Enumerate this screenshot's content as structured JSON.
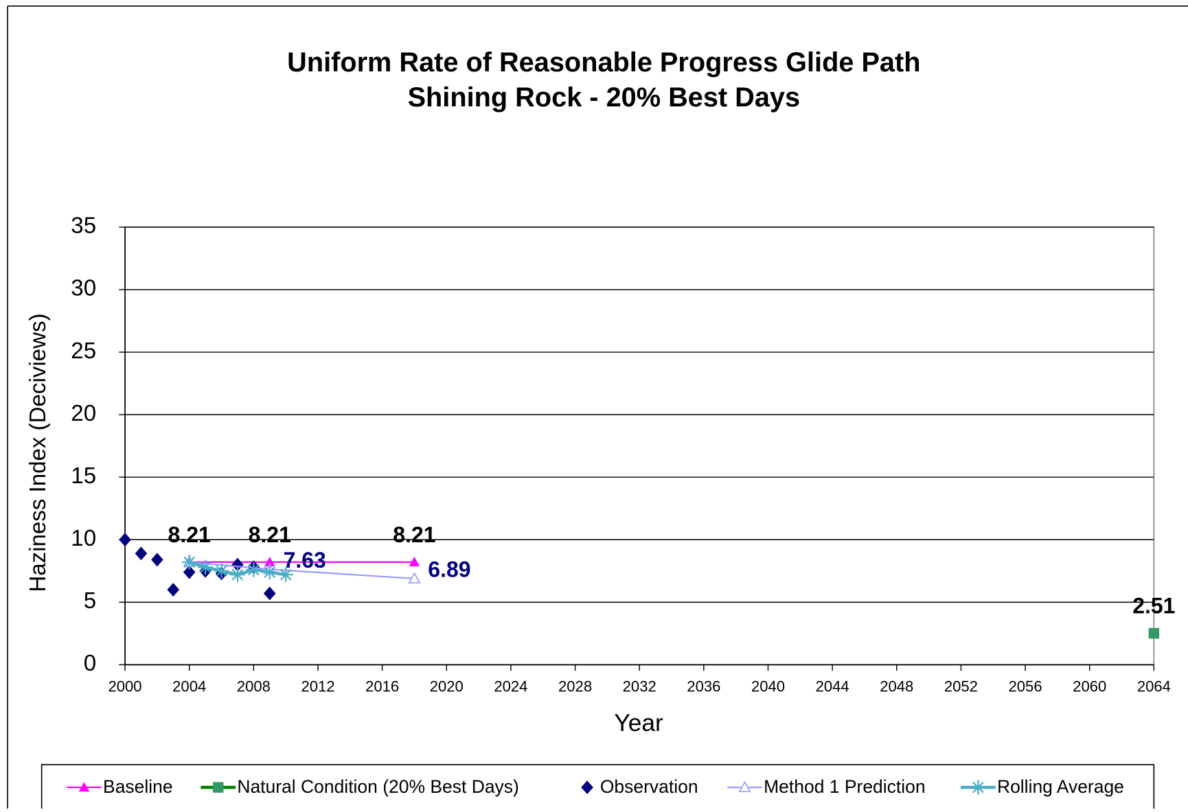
{
  "chart_data": {
    "type": "line",
    "title": "Uniform Rate of Reasonable Progress Glide Path",
    "subtitle": "Shining Rock - 20% Best Days",
    "x_label": "Year",
    "y_label": "Haziness Index (Deciviews)",
    "xlim": [
      2000,
      2064
    ],
    "xticks": [
      2000,
      2004,
      2008,
      2012,
      2016,
      2020,
      2024,
      2028,
      2032,
      2036,
      2040,
      2044,
      2048,
      2052,
      2056,
      2060,
      2064
    ],
    "ylim": [
      0,
      35
    ],
    "yticks": [
      0,
      5,
      10,
      15,
      20,
      25,
      30,
      35
    ],
    "grid": true,
    "legend": "bottom",
    "series": [
      {
        "name": "Baseline",
        "color": "#ff00ff",
        "marker": "triangle",
        "line": true,
        "x": [
          2004,
          2009,
          2018
        ],
        "values": [
          8.21,
          8.21,
          8.21
        ],
        "value_labels": [
          "8.21",
          "8.21",
          "8.21"
        ]
      },
      {
        "name": "Natural Condition (20% Best Days)",
        "color": "#008000",
        "marker_color": "#339966",
        "marker": "square",
        "line": true,
        "x": [
          2064
        ],
        "values": [
          2.51
        ],
        "value_labels": [
          "2.51"
        ]
      },
      {
        "name": "Observation",
        "color": "#000080",
        "marker": "diamond",
        "line": false,
        "x": [
          2000,
          2001,
          2002,
          2003,
          2004,
          2005,
          2006,
          2007,
          2008,
          2009
        ],
        "values": [
          10.0,
          8.9,
          8.4,
          6.0,
          7.4,
          7.5,
          7.3,
          8.0,
          7.8,
          5.7
        ]
      },
      {
        "name": "Method 1 Prediction",
        "color": "#9999ff",
        "marker": "open-triangle",
        "line": true,
        "x": [
          2004,
          2009,
          2018
        ],
        "values": [
          8.21,
          7.63,
          6.89
        ],
        "value_labels": [
          null,
          "7.63",
          "6.89"
        ]
      },
      {
        "name": "Rolling Average",
        "color": "#4bacc6",
        "marker": "star",
        "line": true,
        "x": [
          2004,
          2005,
          2006,
          2007,
          2008,
          2009,
          2010
        ],
        "values": [
          8.2,
          7.8,
          7.5,
          7.2,
          7.6,
          7.4,
          7.2
        ]
      }
    ]
  }
}
